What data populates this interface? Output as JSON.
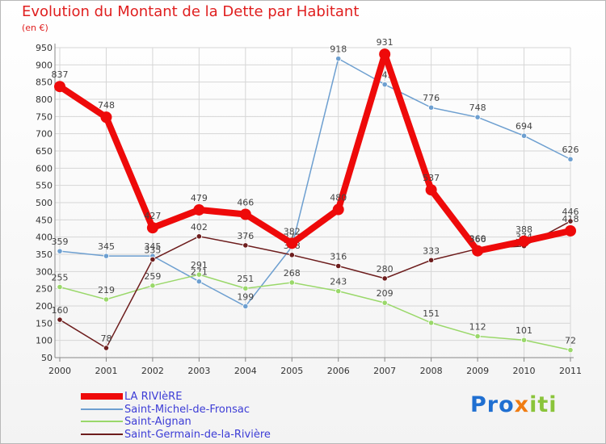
{
  "title": "Evolution du Montant de la Dette par Habitant",
  "subtitle": "(en €)",
  "logo": "Proxiti",
  "chart_data": {
    "type": "line",
    "categories": [
      "2000",
      "2001",
      "2002",
      "2003",
      "2004",
      "2005",
      "2006",
      "2007",
      "2008",
      "2009",
      "2010",
      "2011"
    ],
    "ylim": [
      50,
      950
    ],
    "yticks": [
      50,
      100,
      150,
      200,
      250,
      300,
      350,
      400,
      450,
      500,
      550,
      600,
      650,
      700,
      750,
      800,
      850,
      900,
      950
    ],
    "grid": true,
    "legend": "bottom-left",
    "series": [
      {
        "name": "LA RIVIèRE",
        "color": "#ee0a0a",
        "width": 8,
        "values": [
          837,
          748,
          427,
          479,
          466,
          382,
          480,
          931,
          537,
          360,
          388,
          418
        ]
      },
      {
        "name": "Saint-Michel-de-Fronsac",
        "color": "#6d9fd0",
        "width": 1.5,
        "values": [
          359,
          345,
          345,
          271,
          199,
          372,
          918,
          843,
          776,
          748,
          694,
          626
        ]
      },
      {
        "name": "Saint-Aignan",
        "color": "#9ad86a",
        "width": 1.5,
        "values": [
          255,
          219,
          259,
          291,
          251,
          268,
          243,
          209,
          151,
          112,
          101,
          72
        ]
      },
      {
        "name": "Saint-Germain-de-la-Rivière",
        "color": "#6d1d1d",
        "width": 1.5,
        "values": [
          160,
          78,
          335,
          402,
          376,
          348,
          316,
          280,
          333,
          366,
          374,
          446
        ]
      }
    ]
  }
}
